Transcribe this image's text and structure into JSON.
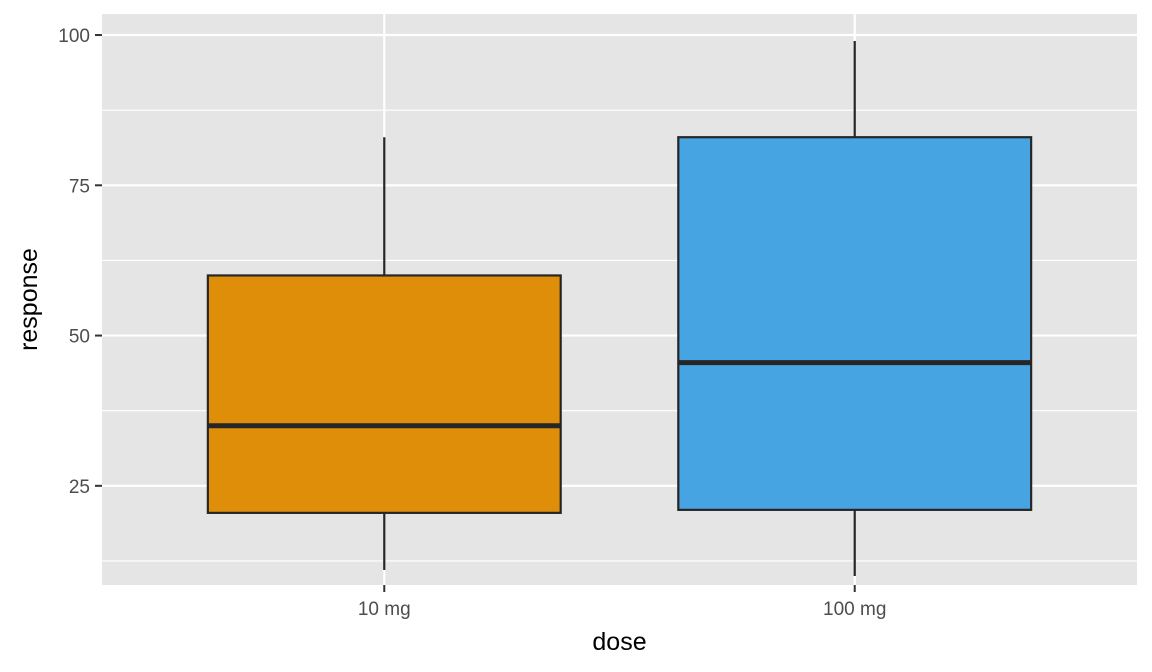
{
  "chart_data": {
    "type": "boxplot",
    "title": "",
    "xlabel": "dose",
    "ylabel": "response",
    "categories": [
      "10 mg",
      "100 mg"
    ],
    "ylim": [
      8.5,
      103.5
    ],
    "yticks": [
      25,
      50,
      75,
      100
    ],
    "y_minor_ticks": [
      12.5,
      37.5,
      62.5,
      87.5
    ],
    "grid": true,
    "legend": "none",
    "panel_background": "#e5e5e5",
    "grid_color": "#ffffff",
    "outline_color": "#262626",
    "boxes": [
      {
        "category": "10 mg",
        "min": 11,
        "q1": 20.5,
        "median": 35,
        "q3": 60,
        "max": 83,
        "color": "#df8e0a"
      },
      {
        "category": "100 mg",
        "min": 10,
        "q1": 21,
        "median": 45.5,
        "q3": 83,
        "max": 99,
        "color": "#47a4e2"
      }
    ]
  }
}
